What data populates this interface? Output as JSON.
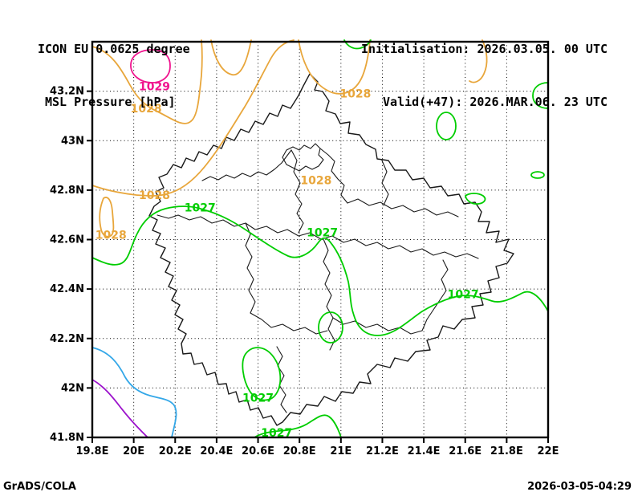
{
  "header": {
    "model_line": "ICON EU 0.0625 degree",
    "field_line": "MSL Pressure [hPa]",
    "init_line": "Initialisation: 2026.03.05. 00 UTC",
    "valid_line": "Valid(+47): 2026.MAR.06. 23 UTC"
  },
  "footer": {
    "credit": "GrADS/COLA",
    "timestamp": "2026-03-05-04:29"
  },
  "chart_data": {
    "type": "contour_map",
    "title": "MSL Pressure [hPa]",
    "model": "ICON EU 0.0625 degree",
    "initialisation": "2026.03.05. 00 UTC",
    "valid": "2026.MAR.06. 23 UTC",
    "forecast_hour": "+47",
    "unit": "hPa",
    "grid": "dotted",
    "x_axis": {
      "range": [
        19.8,
        22.0
      ],
      "ticks": [
        {
          "label": "19.8E",
          "value": 19.8
        },
        {
          "label": "20E",
          "value": 20.0
        },
        {
          "label": "20.2E",
          "value": 20.2
        },
        {
          "label": "20.4E",
          "value": 20.4
        },
        {
          "label": "20.6E",
          "value": 20.6
        },
        {
          "label": "20.8E",
          "value": 20.8
        },
        {
          "label": "21E",
          "value": 21.0
        },
        {
          "label": "21.2E",
          "value": 21.2
        },
        {
          "label": "21.4E",
          "value": 21.4
        },
        {
          "label": "21.6E",
          "value": 21.6
        },
        {
          "label": "21.8E",
          "value": 21.8
        },
        {
          "label": "22E",
          "value": 22.0
        }
      ]
    },
    "y_axis": {
      "range": [
        41.8,
        43.4
      ],
      "ticks": [
        {
          "label": "41.8N",
          "value": 41.8
        },
        {
          "label": "42N",
          "value": 42.0
        },
        {
          "label": "42.2N",
          "value": 42.2
        },
        {
          "label": "42.4N",
          "value": 42.4
        },
        {
          "label": "42.6N",
          "value": 42.6
        },
        {
          "label": "42.8N",
          "value": 42.8
        },
        {
          "label": "43N",
          "value": 43.0
        },
        {
          "label": "43.2N",
          "value": 43.2
        }
      ]
    },
    "contour_levels": [
      {
        "value": 1029,
        "color": "#f0148e",
        "labeled": true
      },
      {
        "value": 1028,
        "color": "#e8a63b",
        "labeled": true
      },
      {
        "value": 1027,
        "color": "#00cd00",
        "labeled": true
      },
      {
        "value": null,
        "color": "#33a7e8",
        "labeled": false
      },
      {
        "value": null,
        "color": "#9b10cb",
        "labeled": false
      }
    ],
    "contour_labels": [
      {
        "text": "1029",
        "color": "#f0148e",
        "lon": 20.1,
        "lat": 43.22
      },
      {
        "text": "1028",
        "color": "#e8a63b",
        "lon": 20.06,
        "lat": 43.13
      },
      {
        "text": "1028",
        "color": "#e8a63b",
        "lon": 21.07,
        "lat": 43.19
      },
      {
        "text": "1028",
        "color": "#e8a63b",
        "lon": 20.1,
        "lat": 42.78
      },
      {
        "text": "1028",
        "color": "#e8a63b",
        "lon": 19.89,
        "lat": 42.62
      },
      {
        "text": "1028",
        "color": "#e8a63b",
        "lon": 20.88,
        "lat": 42.84
      },
      {
        "text": "1027",
        "color": "#00cd00",
        "lon": 20.32,
        "lat": 42.73
      },
      {
        "text": "1027",
        "color": "#00cd00",
        "lon": 20.91,
        "lat": 42.63
      },
      {
        "text": "1027",
        "color": "#00cd00",
        "lon": 21.59,
        "lat": 42.38
      },
      {
        "text": "1027",
        "color": "#00cd00",
        "lon": 20.6,
        "lat": 41.96
      },
      {
        "text": "1027",
        "color": "#00cd00",
        "lon": 20.69,
        "lat": 41.82
      }
    ]
  }
}
